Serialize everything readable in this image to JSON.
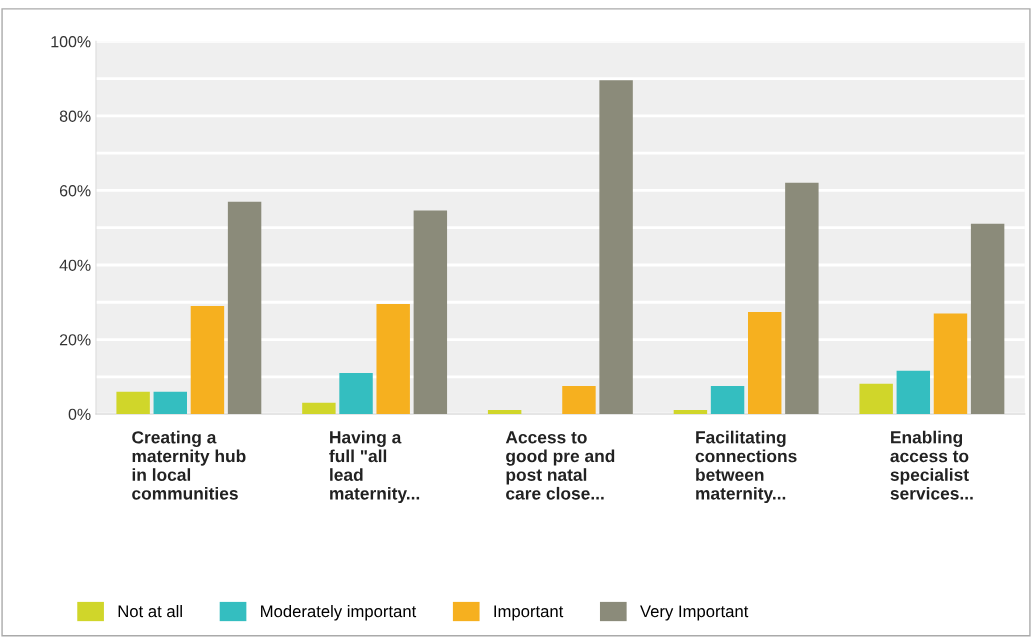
{
  "chart_data": {
    "type": "bar",
    "categories": [
      "Creating a\nmaternity hub\nin local\ncommunities",
      "Having a\nfull \"all\nlead\nmaternity...",
      "Access to\ngood pre and\npost natal\ncare close...",
      "Facilitating\nconnections\nbetween\nmaternity...",
      "Enabling\naccess to\nspecialist\nservices..."
    ],
    "series": [
      {
        "name": "Not at all",
        "color": "#d0d62a",
        "values": [
          6.0,
          3.0,
          1.1,
          1.1,
          8.1
        ]
      },
      {
        "name": "Moderately important",
        "color": "#34bec0",
        "values": [
          6.0,
          11.0,
          0,
          7.5,
          11.6
        ]
      },
      {
        "name": "Important",
        "color": "#f6b01f",
        "values": [
          29.0,
          29.5,
          7.5,
          27.4,
          27.0
        ]
      },
      {
        "name": "Very Important",
        "color": "#8b8b7a",
        "values": [
          57.0,
          54.6,
          89.6,
          62.1,
          51.1
        ]
      }
    ],
    "ylim": [
      0,
      100
    ],
    "yticks": [
      {
        "value": 0,
        "label": "0%"
      },
      {
        "value": 10,
        "label": null
      },
      {
        "value": 20,
        "label": "20%"
      },
      {
        "value": 30,
        "label": null
      },
      {
        "value": 40,
        "label": "40%"
      },
      {
        "value": 50,
        "label": null
      },
      {
        "value": 60,
        "label": "60%"
      },
      {
        "value": 70,
        "label": null
      },
      {
        "value": 80,
        "label": "80%"
      },
      {
        "value": 90,
        "label": null
      },
      {
        "value": 100,
        "label": "100%"
      }
    ],
    "grid": "y",
    "legend": "bottom"
  }
}
